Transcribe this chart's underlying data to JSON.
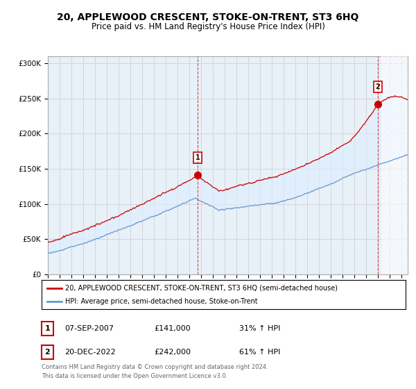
{
  "title": "20, APPLEWOOD CRESCENT, STOKE-ON-TRENT, ST3 6HQ",
  "subtitle": "Price paid vs. HM Land Registry's House Price Index (HPI)",
  "ylabel_ticks": [
    "£0",
    "£50K",
    "£100K",
    "£150K",
    "£200K",
    "£250K",
    "£300K"
  ],
  "ytick_values": [
    0,
    50000,
    100000,
    150000,
    200000,
    250000,
    300000
  ],
  "ylim": [
    0,
    310000
  ],
  "xlim_start": 1995.0,
  "xlim_end": 2025.5,
  "hatch_start": 2023.25,
  "transaction1_x": 2007.69,
  "transaction1_y": 141000,
  "transaction1_label": "1",
  "transaction1_date": "07-SEP-2007",
  "transaction1_price": "£141,000",
  "transaction1_hpi": "31% ↑ HPI",
  "transaction2_x": 2022.97,
  "transaction2_y": 242000,
  "transaction2_label": "2",
  "transaction2_date": "20-DEC-2022",
  "transaction2_price": "£242,000",
  "transaction2_hpi": "61% ↑ HPI",
  "legend_line1": "20, APPLEWOOD CRESCENT, STOKE-ON-TRENT, ST3 6HQ (semi-detached house)",
  "legend_line2": "HPI: Average price, semi-detached house, Stoke-on-Trent",
  "footer1": "Contains HM Land Registry data © Crown copyright and database right 2024.",
  "footer2": "This data is licensed under the Open Government Licence v3.0.",
  "red_color": "#cc0000",
  "blue_color": "#6699cc",
  "fill_color": "#ddeeff",
  "background_color": "#ffffff",
  "grid_color": "#cccccc",
  "title_fontsize": 10,
  "subtitle_fontsize": 8.5,
  "axis_fontsize": 7.5
}
